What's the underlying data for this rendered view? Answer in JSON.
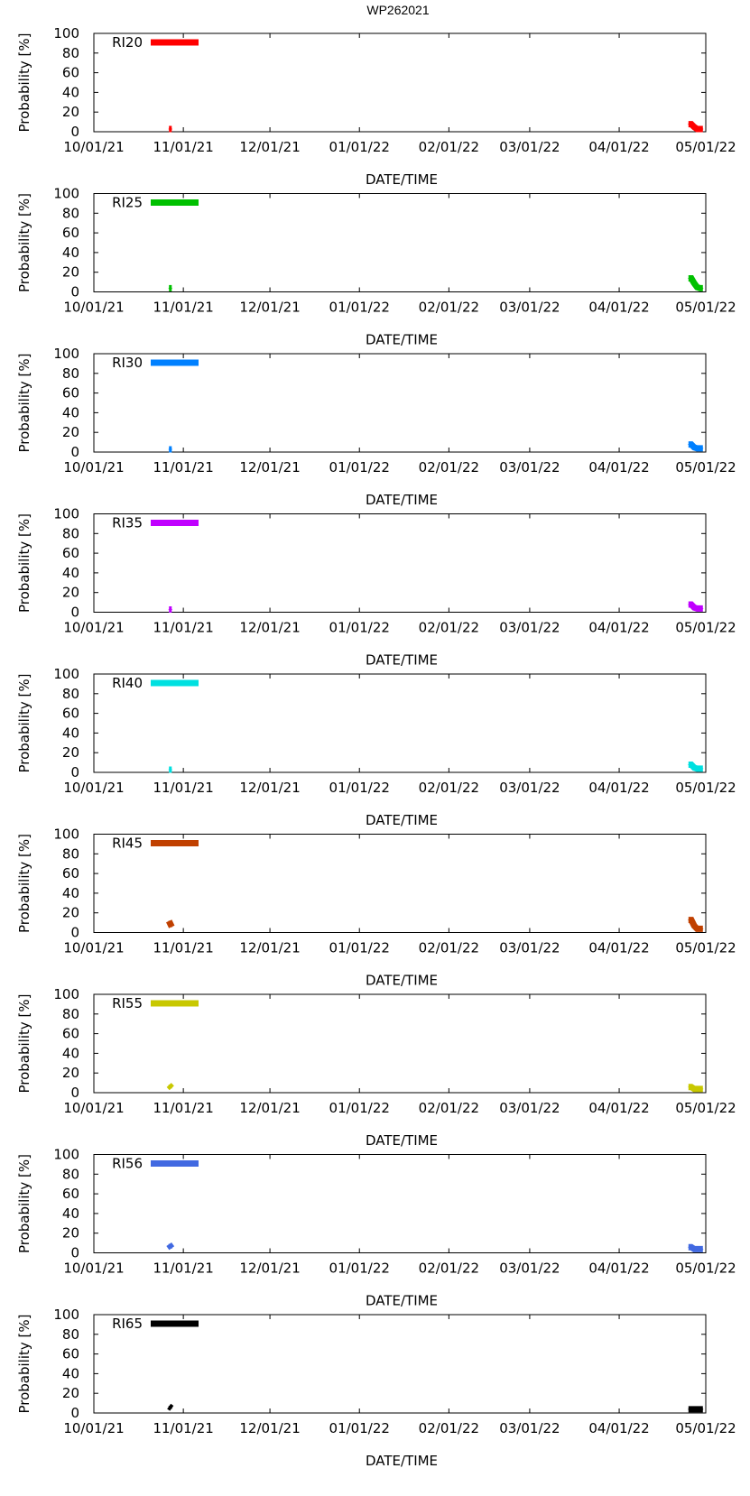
{
  "title": "WP262021",
  "chart_data": [
    {
      "type": "line",
      "legend": "RI20",
      "color": "#ff0000",
      "ylabel": "Probability [%]",
      "xlabel": "DATE/TIME",
      "ylim": [
        0,
        100
      ],
      "yticks": [
        "0",
        "20",
        "40",
        "60",
        "80",
        "100"
      ],
      "xticks": [
        "10/01/21",
        "11/01/21",
        "12/01/21",
        "01/01/22",
        "02/01/22",
        "03/01/22",
        "04/01/22",
        "05/01/22"
      ],
      "series": [
        {
          "x": [
            "10/27/21",
            "10/28/21"
          ],
          "y": [
            0,
            0
          ]
        },
        {
          "x": [
            "04/25/22",
            "04/26/22",
            "04/27/22",
            "04/28/22",
            "04/29/22",
            "04/30/22"
          ],
          "y": [
            5,
            5,
            2,
            0,
            0,
            0
          ]
        }
      ]
    },
    {
      "type": "line",
      "legend": "RI25",
      "color": "#00c000",
      "ylabel": "Probability [%]",
      "xlabel": "DATE/TIME",
      "ylim": [
        0,
        100
      ],
      "yticks": [
        "0",
        "20",
        "40",
        "60",
        "80",
        "100"
      ],
      "xticks": [
        "10/01/21",
        "11/01/21",
        "12/01/21",
        "01/01/22",
        "02/01/22",
        "03/01/22",
        "04/01/22",
        "05/01/22"
      ],
      "series": [
        {
          "x": [
            "10/27/21",
            "10/28/21"
          ],
          "y": [
            1,
            1
          ]
        },
        {
          "x": [
            "04/25/22",
            "04/26/22",
            "04/27/22",
            "04/28/22",
            "04/29/22",
            "04/30/22"
          ],
          "y": [
            11,
            11,
            6,
            2,
            1,
            1
          ]
        }
      ]
    },
    {
      "type": "line",
      "legend": "RI30",
      "color": "#0080ff",
      "ylabel": "Probability [%]",
      "xlabel": "DATE/TIME",
      "ylim": [
        0,
        100
      ],
      "yticks": [
        "0",
        "20",
        "40",
        "60",
        "80",
        "100"
      ],
      "xticks": [
        "10/01/21",
        "11/01/21",
        "12/01/21",
        "01/01/22",
        "02/01/22",
        "03/01/22",
        "04/01/22",
        "05/01/22"
      ],
      "series": [
        {
          "x": [
            "10/27/21",
            "10/28/21"
          ],
          "y": [
            0,
            0
          ]
        },
        {
          "x": [
            "04/25/22",
            "04/26/22",
            "04/27/22",
            "04/28/22",
            "04/29/22",
            "04/30/22"
          ],
          "y": [
            5,
            5,
            2,
            1,
            1,
            1
          ]
        }
      ]
    },
    {
      "type": "line",
      "legend": "RI35",
      "color": "#c000ff",
      "ylabel": "Probability [%]",
      "xlabel": "DATE/TIME",
      "ylim": [
        0,
        100
      ],
      "yticks": [
        "0",
        "20",
        "40",
        "60",
        "80",
        "100"
      ],
      "xticks": [
        "10/01/21",
        "11/01/21",
        "12/01/21",
        "01/01/22",
        "02/01/22",
        "03/01/22",
        "04/01/22",
        "05/01/22"
      ],
      "series": [
        {
          "x": [
            "10/27/21",
            "10/28/21"
          ],
          "y": [
            0,
            0
          ]
        },
        {
          "x": [
            "04/25/22",
            "04/26/22",
            "04/27/22",
            "04/28/22",
            "04/29/22",
            "04/30/22"
          ],
          "y": [
            5,
            5,
            2,
            1,
            1,
            1
          ]
        }
      ]
    },
    {
      "type": "line",
      "legend": "RI40",
      "color": "#00e0e0",
      "ylabel": "Probability [%]",
      "xlabel": "DATE/TIME",
      "ylim": [
        0,
        100
      ],
      "yticks": [
        "0",
        "20",
        "40",
        "60",
        "80",
        "100"
      ],
      "xticks": [
        "10/01/21",
        "11/01/21",
        "12/01/21",
        "01/01/22",
        "02/01/22",
        "03/01/22",
        "04/01/22",
        "05/01/22"
      ],
      "series": [
        {
          "x": [
            "10/27/21",
            "10/28/21"
          ],
          "y": [
            0,
            0
          ]
        },
        {
          "x": [
            "04/25/22",
            "04/26/22",
            "04/27/22",
            "04/28/22",
            "04/29/22",
            "04/30/22"
          ],
          "y": [
            5,
            5,
            2,
            1,
            1,
            1
          ]
        }
      ]
    },
    {
      "type": "line",
      "legend": "RI45",
      "color": "#c04000",
      "ylabel": "Probability [%]",
      "xlabel": "DATE/TIME",
      "ylim": [
        0,
        100
      ],
      "yticks": [
        "0",
        "20",
        "40",
        "60",
        "80",
        "100"
      ],
      "xticks": [
        "10/01/21",
        "11/01/21",
        "12/01/21",
        "01/01/22",
        "02/01/22",
        "03/01/22",
        "04/01/22",
        "05/01/22"
      ],
      "series": [
        {
          "x": [
            "10/27/21",
            "10/28/21"
          ],
          "y": [
            9,
            3
          ]
        },
        {
          "x": [
            "04/25/22",
            "04/26/22",
            "04/27/22",
            "04/28/22",
            "04/29/22",
            "04/30/22"
          ],
          "y": [
            10,
            10,
            4,
            1,
            1,
            1
          ]
        }
      ]
    },
    {
      "type": "line",
      "legend": "RI55",
      "color": "#c8c800",
      "ylabel": "Probability [%]",
      "xlabel": "DATE/TIME",
      "ylim": [
        0,
        100
      ],
      "yticks": [
        "0",
        "20",
        "40",
        "60",
        "80",
        "100"
      ],
      "xticks": [
        "10/01/21",
        "11/01/21",
        "12/01/21",
        "01/01/22",
        "02/01/22",
        "03/01/22",
        "04/01/22",
        "05/01/22"
      ],
      "series": [
        {
          "x": [
            "10/27/21",
            "10/28/21"
          ],
          "y": [
            5,
            2
          ]
        },
        {
          "x": [
            "04/25/22",
            "04/26/22",
            "04/27/22",
            "04/28/22",
            "04/29/22",
            "04/30/22"
          ],
          "y": [
            3,
            3,
            1,
            1,
            1,
            1
          ]
        }
      ]
    },
    {
      "type": "line",
      "legend": "RI56",
      "color": "#4169e1",
      "ylabel": "Probability [%]",
      "xlabel": "DATE/TIME",
      "ylim": [
        0,
        100
      ],
      "yticks": [
        "0",
        "20",
        "40",
        "60",
        "80",
        "100"
      ],
      "xticks": [
        "10/01/21",
        "11/01/21",
        "12/01/21",
        "01/01/22",
        "02/01/22",
        "03/01/22",
        "04/01/22",
        "05/01/22"
      ],
      "series": [
        {
          "x": [
            "10/27/21",
            "10/28/21"
          ],
          "y": [
            6,
            2
          ]
        },
        {
          "x": [
            "04/25/22",
            "04/26/22",
            "04/27/22",
            "04/28/22",
            "04/29/22",
            "04/30/22"
          ],
          "y": [
            3,
            3,
            1,
            1,
            1,
            1
          ]
        }
      ]
    },
    {
      "type": "line",
      "legend": "RI65",
      "color": "#000000",
      "ylabel": "Probability [%]",
      "xlabel": "DATE/TIME",
      "ylim": [
        0,
        100
      ],
      "yticks": [
        "0",
        "20",
        "40",
        "60",
        "80",
        "100"
      ],
      "xticks": [
        "10/01/21",
        "11/01/21",
        "12/01/21",
        "01/01/22",
        "02/01/22",
        "03/01/22",
        "04/01/22",
        "05/01/22"
      ],
      "series": [
        {
          "x": [
            "10/27/21",
            "10/28/21"
          ],
          "y": [
            4,
            2
          ]
        },
        {
          "x": [
            "04/25/22",
            "04/26/22",
            "04/27/22",
            "04/28/22",
            "04/29/22",
            "04/30/22"
          ],
          "y": [
            1,
            1,
            1,
            1,
            1,
            1
          ]
        }
      ]
    }
  ]
}
